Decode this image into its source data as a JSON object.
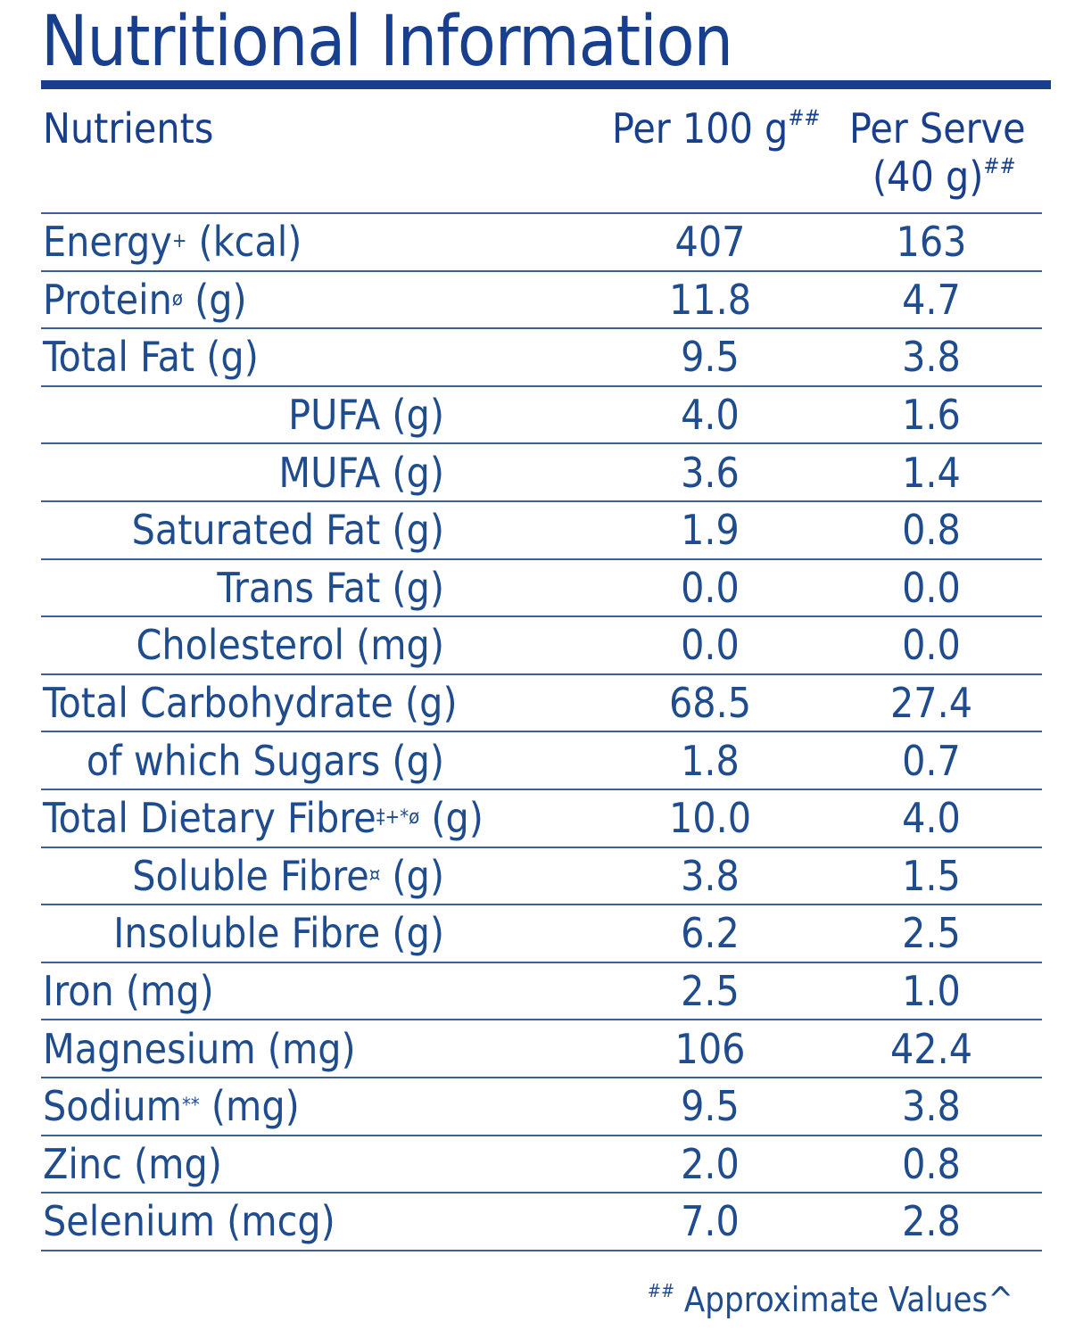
{
  "title": "Nutritional Information",
  "header": {
    "nutrients": "Nutrients",
    "per100": "Per 100 g",
    "per100_mark": "##",
    "per_serve_line1": "Per Serve",
    "per_serve_line2": "(40 g)",
    "per_serve_mark": "##"
  },
  "rows": [
    {
      "name": "Energy",
      "sup": "+",
      "unit": " (kcal)",
      "per100": "407",
      "per_serve": "163",
      "indent": false
    },
    {
      "name": "Protein",
      "sup": "ø",
      "unit": " (g)",
      "per100": "11.8",
      "per_serve": "4.7",
      "indent": false
    },
    {
      "name": "Total Fat (g)",
      "sup": "",
      "unit": "",
      "per100": "9.5",
      "per_serve": "3.8",
      "indent": false
    },
    {
      "name": "PUFA (g)",
      "sup": "",
      "unit": "",
      "per100": "4.0",
      "per_serve": "1.6",
      "indent": true
    },
    {
      "name": "MUFA (g)",
      "sup": "",
      "unit": "",
      "per100": "3.6",
      "per_serve": "1.4",
      "indent": true
    },
    {
      "name": "Saturated Fat (g)",
      "sup": "",
      "unit": "",
      "per100": "1.9",
      "per_serve": "0.8",
      "indent": true
    },
    {
      "name": "Trans Fat (g)",
      "sup": "",
      "unit": "",
      "per100": "0.0",
      "per_serve": "0.0",
      "indent": true
    },
    {
      "name": "Cholesterol (mg)",
      "sup": "",
      "unit": "",
      "per100": "0.0",
      "per_serve": "0.0",
      "indent": true
    },
    {
      "name": "Total Carbohydrate (g)",
      "sup": "",
      "unit": "",
      "per100": "68.5",
      "per_serve": "27.4",
      "indent": false
    },
    {
      "name": "of which Sugars (g)",
      "sup": "",
      "unit": "",
      "per100": "1.8",
      "per_serve": "0.7",
      "indent": true
    },
    {
      "name": "Total Dietary Fibre",
      "sup": "‡+*ø",
      "unit": " (g)",
      "per100": "10.0",
      "per_serve": "4.0",
      "indent": false
    },
    {
      "name": "Soluble Fibre",
      "sup": "¤",
      "unit": " (g)",
      "per100": "3.8",
      "per_serve": "1.5",
      "indent": true
    },
    {
      "name": "Insoluble Fibre (g)",
      "sup": "",
      "unit": "",
      "per100": "6.2",
      "per_serve": "2.5",
      "indent": true
    },
    {
      "name": "Iron (mg)",
      "sup": "",
      "unit": "",
      "per100": "2.5",
      "per_serve": "1.0",
      "indent": false
    },
    {
      "name": "Magnesium (mg)",
      "sup": "",
      "unit": "",
      "per100": "106",
      "per_serve": "42.4",
      "indent": false
    },
    {
      "name": "Sodium",
      "sup": "**",
      "unit": " (mg)",
      "per100": "9.5",
      "per_serve": "3.8",
      "indent": false
    },
    {
      "name": "Zinc (mg)",
      "sup": "",
      "unit": "",
      "per100": "2.0",
      "per_serve": "0.8",
      "indent": false
    },
    {
      "name": "Selenium (mcg)",
      "sup": "",
      "unit": "",
      "per100": "7.0",
      "per_serve": "2.8",
      "indent": false
    }
  ],
  "footnote": {
    "mark": "##",
    "text": " Approximate Values^"
  }
}
